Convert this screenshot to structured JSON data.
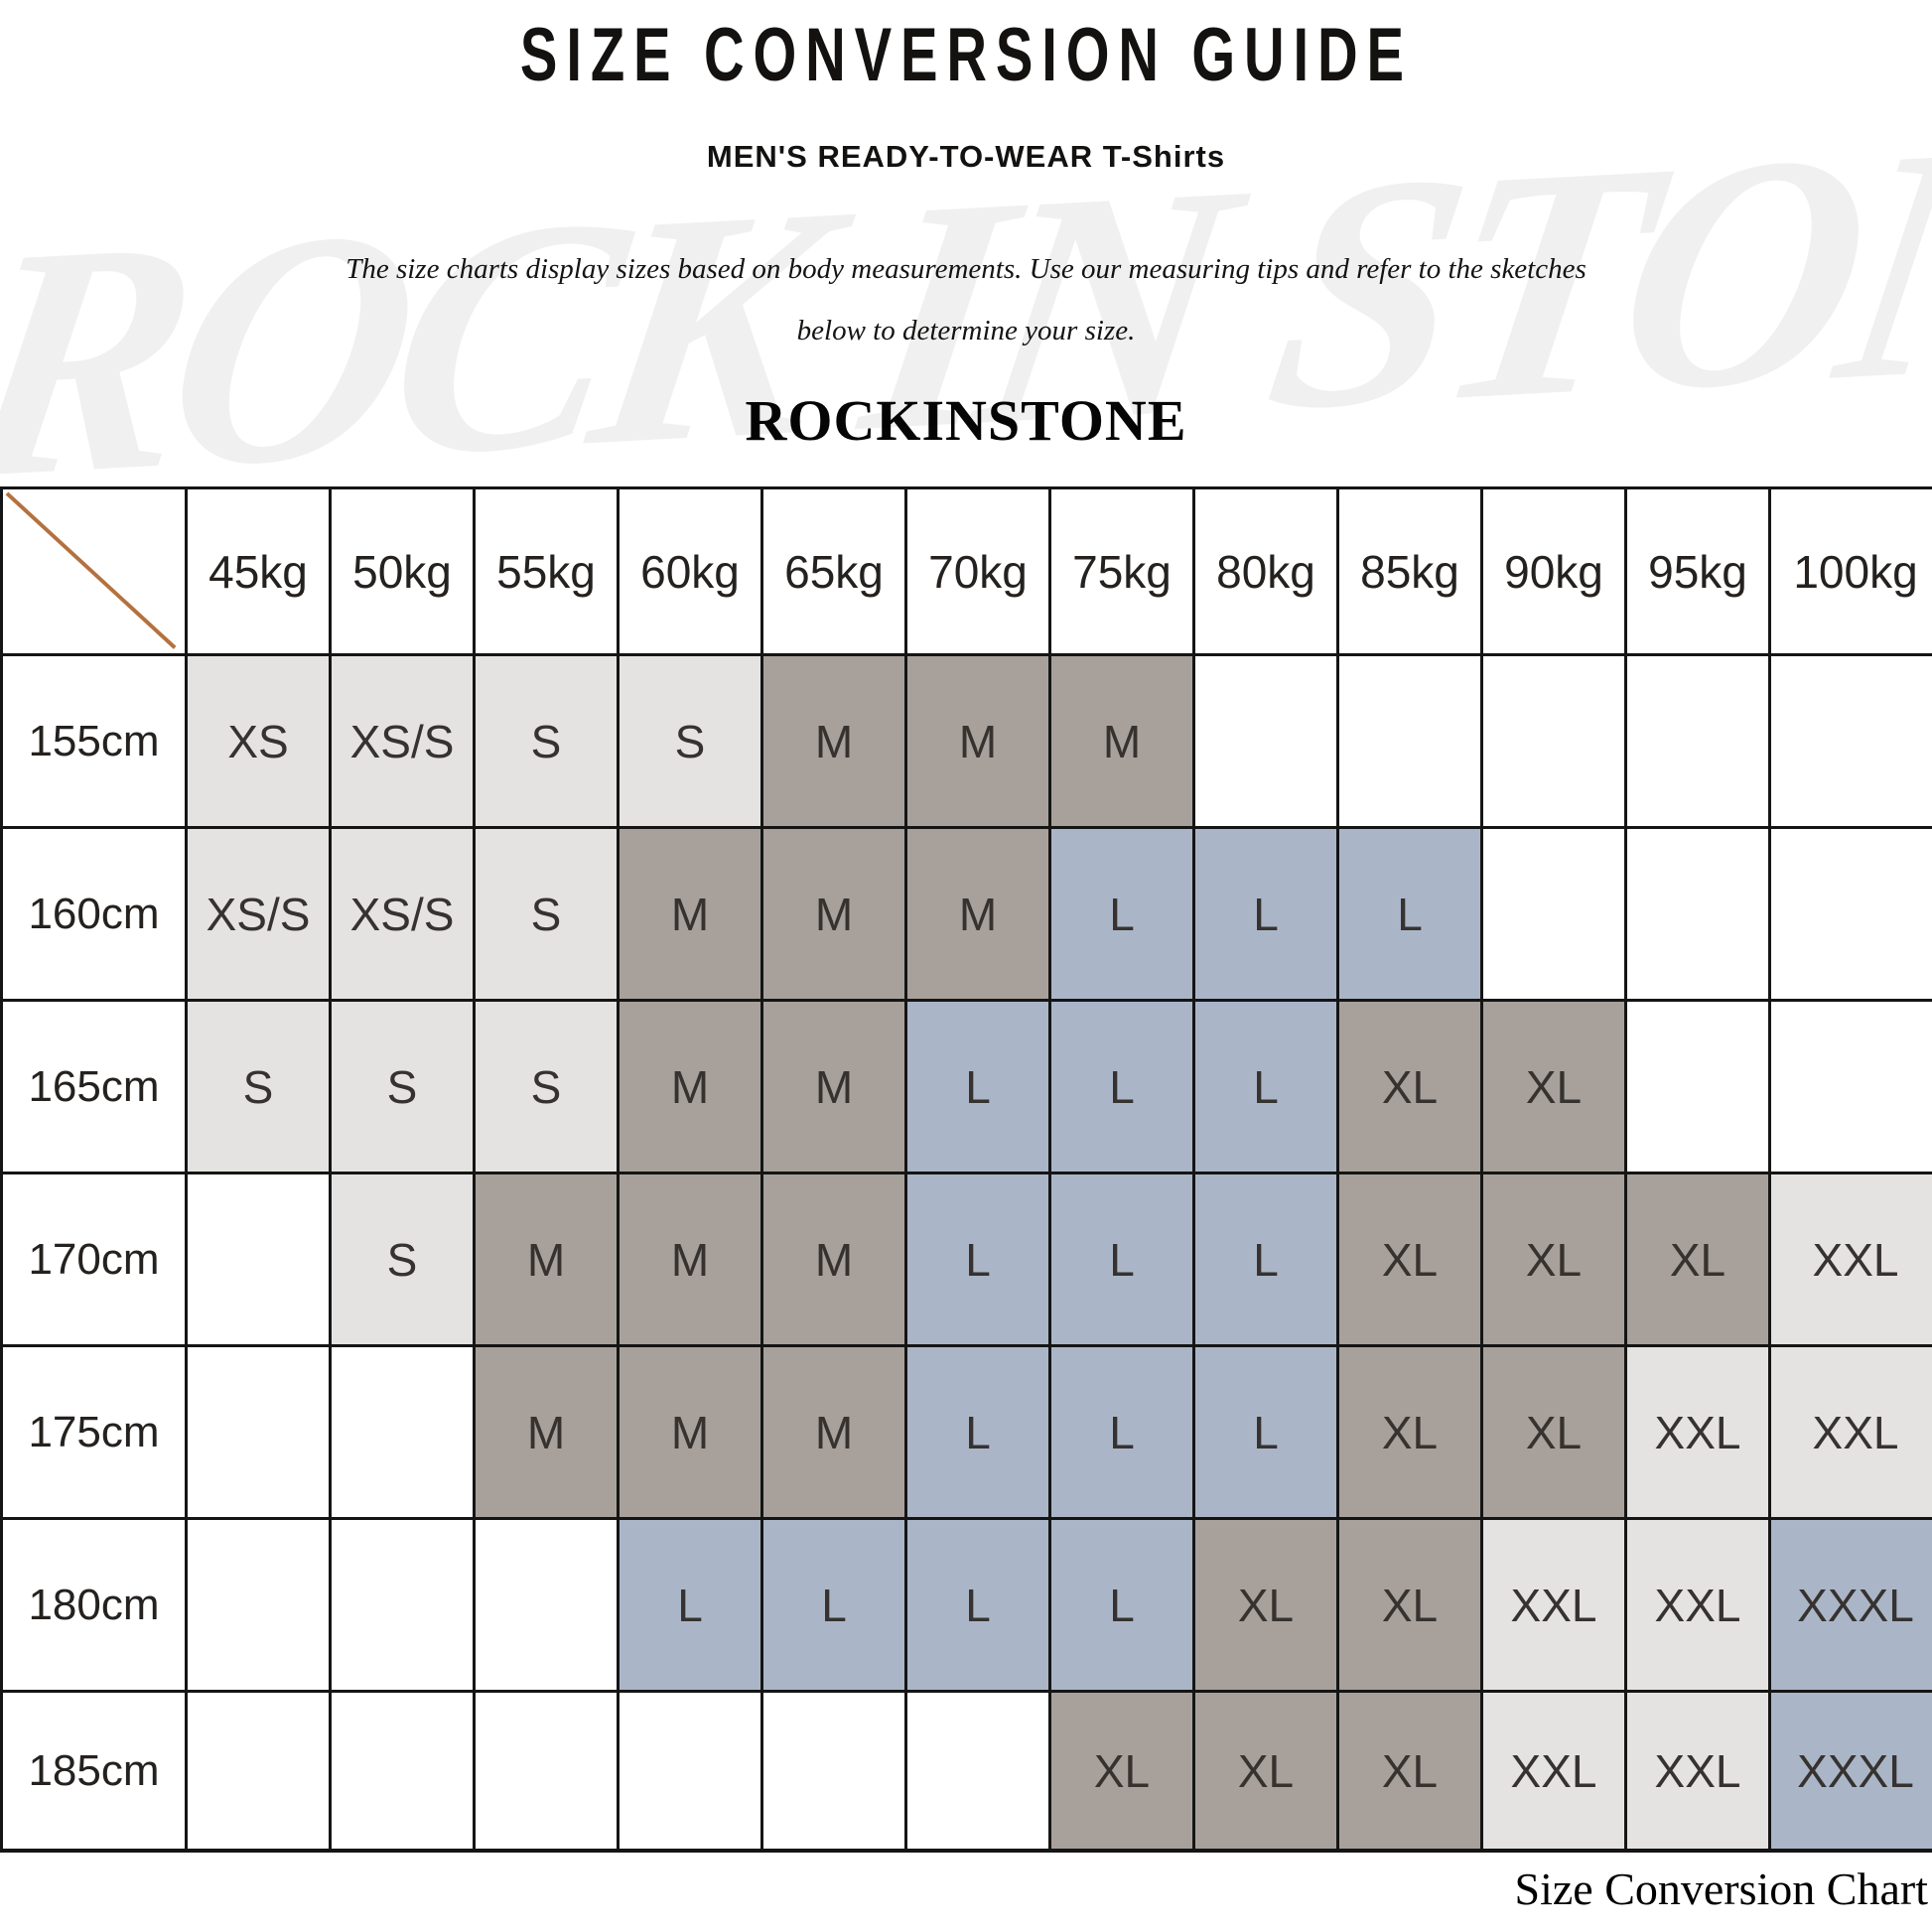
{
  "header": {
    "title": "SIZE CONVERSION GUIDE",
    "subtitle": "MEN'S READY-TO-WEAR T-Shirts",
    "desc_line1": "The size charts display sizes based on body measurements.  Use our measuring tips and refer to the sketches",
    "desc_line2": "below to determine your size.",
    "brand": "ROCKINSTONE"
  },
  "watermark": {
    "text": "ROCK IN STONE"
  },
  "colors": {
    "white": "#ffffff",
    "light": "#e4e3e1",
    "taupe": "#a8a19b",
    "blue": "#aab6c8",
    "diagonal": "#b4713f"
  },
  "table": {
    "weights": [
      "45kg",
      "50kg",
      "55kg",
      "60kg",
      "65kg",
      "70kg",
      "75kg",
      "80kg",
      "85kg",
      "90kg",
      "95kg",
      "100kg"
    ],
    "rows": [
      {
        "height": "155cm",
        "cells": [
          {
            "v": "XS",
            "c": "light"
          },
          {
            "v": "XS/S",
            "c": "light"
          },
          {
            "v": "S",
            "c": "light"
          },
          {
            "v": "S",
            "c": "light"
          },
          {
            "v": "M",
            "c": "taupe"
          },
          {
            "v": "M",
            "c": "taupe"
          },
          {
            "v": "M",
            "c": "taupe"
          },
          {
            "v": "",
            "c": "white"
          },
          {
            "v": "",
            "c": "white"
          },
          {
            "v": "",
            "c": "white"
          },
          {
            "v": "",
            "c": "white"
          },
          {
            "v": "",
            "c": "white"
          }
        ]
      },
      {
        "height": "160cm",
        "cells": [
          {
            "v": "XS/S",
            "c": "light"
          },
          {
            "v": "XS/S",
            "c": "light"
          },
          {
            "v": "S",
            "c": "light"
          },
          {
            "v": "M",
            "c": "taupe"
          },
          {
            "v": "M",
            "c": "taupe"
          },
          {
            "v": "M",
            "c": "taupe"
          },
          {
            "v": "L",
            "c": "blue"
          },
          {
            "v": "L",
            "c": "blue"
          },
          {
            "v": "L",
            "c": "blue"
          },
          {
            "v": "",
            "c": "white"
          },
          {
            "v": "",
            "c": "white"
          },
          {
            "v": "",
            "c": "white"
          }
        ]
      },
      {
        "height": "165cm",
        "cells": [
          {
            "v": "S",
            "c": "light"
          },
          {
            "v": "S",
            "c": "light"
          },
          {
            "v": "S",
            "c": "light"
          },
          {
            "v": "M",
            "c": "taupe"
          },
          {
            "v": "M",
            "c": "taupe"
          },
          {
            "v": "L",
            "c": "blue"
          },
          {
            "v": "L",
            "c": "blue"
          },
          {
            "v": "L",
            "c": "blue"
          },
          {
            "v": "XL",
            "c": "taupe"
          },
          {
            "v": "XL",
            "c": "taupe"
          },
          {
            "v": "",
            "c": "white"
          },
          {
            "v": "",
            "c": "white"
          }
        ]
      },
      {
        "height": "170cm",
        "cells": [
          {
            "v": "",
            "c": "white"
          },
          {
            "v": "S",
            "c": "light"
          },
          {
            "v": "M",
            "c": "taupe"
          },
          {
            "v": "M",
            "c": "taupe"
          },
          {
            "v": "M",
            "c": "taupe"
          },
          {
            "v": "L",
            "c": "blue"
          },
          {
            "v": "L",
            "c": "blue"
          },
          {
            "v": "L",
            "c": "blue"
          },
          {
            "v": "XL",
            "c": "taupe"
          },
          {
            "v": "XL",
            "c": "taupe"
          },
          {
            "v": "XL",
            "c": "taupe"
          },
          {
            "v": "XXL",
            "c": "light"
          }
        ]
      },
      {
        "height": "175cm",
        "cells": [
          {
            "v": "",
            "c": "white"
          },
          {
            "v": "",
            "c": "white"
          },
          {
            "v": "M",
            "c": "taupe"
          },
          {
            "v": "M",
            "c": "taupe"
          },
          {
            "v": "M",
            "c": "taupe"
          },
          {
            "v": "L",
            "c": "blue"
          },
          {
            "v": "L",
            "c": "blue"
          },
          {
            "v": "L",
            "c": "blue"
          },
          {
            "v": "XL",
            "c": "taupe"
          },
          {
            "v": "XL",
            "c": "taupe"
          },
          {
            "v": "XXL",
            "c": "light"
          },
          {
            "v": "XXL",
            "c": "light"
          }
        ]
      },
      {
        "height": "180cm",
        "cells": [
          {
            "v": "",
            "c": "white"
          },
          {
            "v": "",
            "c": "white"
          },
          {
            "v": "",
            "c": "white"
          },
          {
            "v": "L",
            "c": "blue"
          },
          {
            "v": "L",
            "c": "blue"
          },
          {
            "v": "L",
            "c": "blue"
          },
          {
            "v": "L",
            "c": "blue"
          },
          {
            "v": "XL",
            "c": "taupe"
          },
          {
            "v": "XL",
            "c": "taupe"
          },
          {
            "v": "XXL",
            "c": "light"
          },
          {
            "v": "XXL",
            "c": "light"
          },
          {
            "v": "XXXL",
            "c": "blue"
          }
        ]
      },
      {
        "height": "185cm",
        "cells": [
          {
            "v": "",
            "c": "white"
          },
          {
            "v": "",
            "c": "white"
          },
          {
            "v": "",
            "c": "white"
          },
          {
            "v": "",
            "c": "white"
          },
          {
            "v": "",
            "c": "white"
          },
          {
            "v": "",
            "c": "white"
          },
          {
            "v": "XL",
            "c": "taupe"
          },
          {
            "v": "XL",
            "c": "taupe"
          },
          {
            "v": "XL",
            "c": "taupe"
          },
          {
            "v": "XXL",
            "c": "light"
          },
          {
            "v": "XXL",
            "c": "light"
          },
          {
            "v": "XXXL",
            "c": "blue"
          }
        ]
      }
    ]
  },
  "footer": {
    "caption": "Size Conversion Chart"
  }
}
